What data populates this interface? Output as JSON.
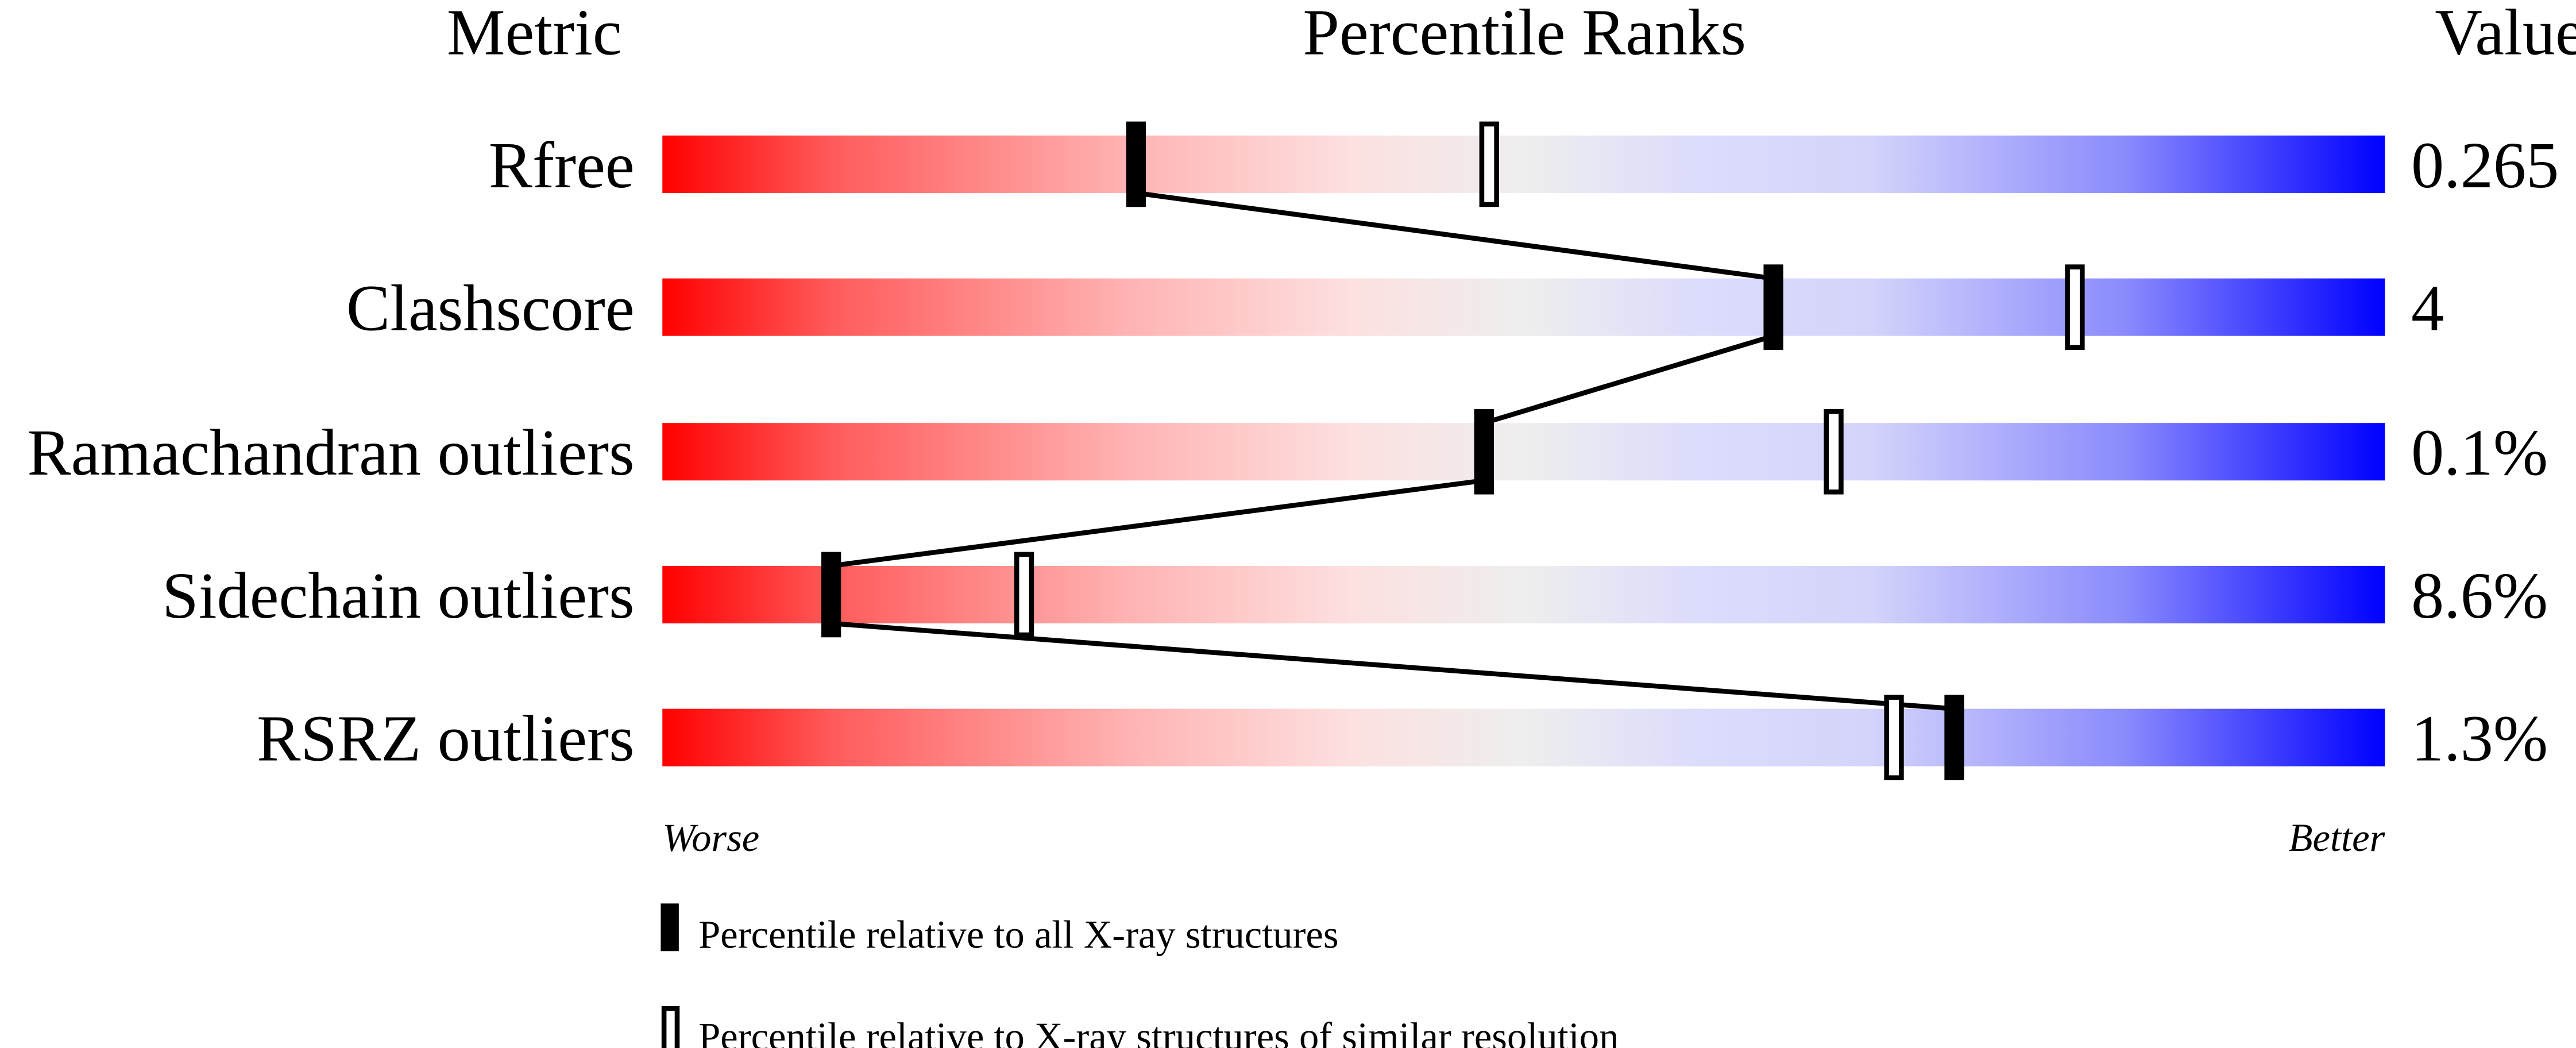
{
  "chart_data": {
    "type": "percentile-bar",
    "headers": {
      "metric": "Metric",
      "ranks": "Percentile Ranks",
      "value": "Value"
    },
    "xlim": [
      0,
      100
    ],
    "axis_labels": {
      "left": "Worse",
      "right": "Better"
    },
    "rows": [
      {
        "metric": "Rfree",
        "value": "0.265",
        "percentile_all": 27.5,
        "percentile_similar": 48
      },
      {
        "metric": "Clashscore",
        "value": "4",
        "percentile_all": 64.5,
        "percentile_similar": 82
      },
      {
        "metric": "Ramachandran outliers",
        "value": "0.1%",
        "percentile_all": 47.7,
        "percentile_similar": 68
      },
      {
        "metric": "Sidechain outliers",
        "value": "8.6%",
        "percentile_all": 9.8,
        "percentile_similar": 21
      },
      {
        "metric": "RSRZ outliers",
        "value": "1.3%",
        "percentile_all": 75,
        "percentile_similar": 71.5
      }
    ],
    "legend": [
      {
        "marker": "filled",
        "label": "Percentile relative to all X-ray structures"
      },
      {
        "marker": "open",
        "label": "Percentile relative to X-ray structures of similar resolution"
      }
    ],
    "colors": {
      "worse": "#ff0000",
      "neutral": "#efefef",
      "better": "#0000ff",
      "marker": "#000000"
    }
  }
}
